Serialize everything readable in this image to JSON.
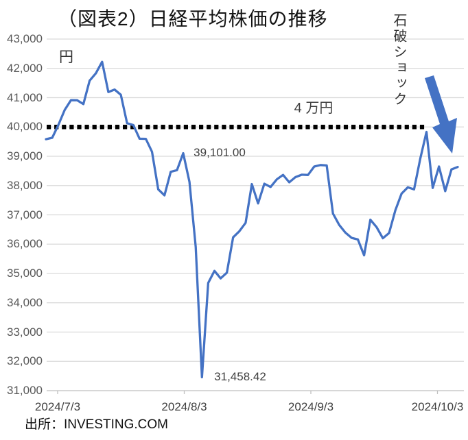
{
  "title": "（図表2）日経平均株価の推移",
  "unit_label": "円",
  "source": "出所：INVESTING.COM",
  "annotations": {
    "peak_label": "39,101.00",
    "crash_low_label": "31,458.42",
    "reference_label": "4 万円",
    "shock_label": "石破ショック"
  },
  "colors": {
    "line": "#4472C4",
    "arrow": "#4472C4",
    "grid": "#D9D9D9",
    "axis": "#BFBFBF",
    "reference_dotted": "#000000",
    "y_tick_text": "#595959",
    "x_tick_text": "#404040"
  },
  "chart_data": {
    "type": "line",
    "title": "（図表2）日経平均株価の推移",
    "xlabel": "",
    "ylabel": "円",
    "ylim": [
      31000,
      43000
    ],
    "ytick_step": 1000,
    "grid": "horizontal",
    "legend": "none",
    "x_tick_labels": [
      "2024/7/3",
      "2024/8/3",
      "2024/9/3",
      "2024/10/3"
    ],
    "reference_line": {
      "value": 40000,
      "label": "4 万円",
      "style": "dotted"
    },
    "annotated_points": [
      {
        "date": "2024/7/31",
        "close": 39101.0,
        "label": "39,101.00"
      },
      {
        "date": "2024/8/5",
        "close": 31458.42,
        "label": "31,458.42"
      }
    ],
    "series": [
      {
        "name": "日経平均株価",
        "points": [
          {
            "date": "2024/6/28",
            "close": 39583
          },
          {
            "date": "2024/7/1",
            "close": 39631
          },
          {
            "date": "2024/7/2",
            "close": 40075
          },
          {
            "date": "2024/7/3",
            "close": 40581
          },
          {
            "date": "2024/7/4",
            "close": 40914
          },
          {
            "date": "2024/7/5",
            "close": 40912
          },
          {
            "date": "2024/7/8",
            "close": 40781
          },
          {
            "date": "2024/7/9",
            "close": 41580
          },
          {
            "date": "2024/7/10",
            "close": 41832
          },
          {
            "date": "2024/7/11",
            "close": 42224
          },
          {
            "date": "2024/7/12",
            "close": 41191
          },
          {
            "date": "2024/7/16",
            "close": 41275
          },
          {
            "date": "2024/7/17",
            "close": 41098
          },
          {
            "date": "2024/7/18",
            "close": 40127
          },
          {
            "date": "2024/7/19",
            "close": 40064
          },
          {
            "date": "2024/7/22",
            "close": 39599
          },
          {
            "date": "2024/7/23",
            "close": 39594
          },
          {
            "date": "2024/7/24",
            "close": 39155
          },
          {
            "date": "2024/7/25",
            "close": 37870
          },
          {
            "date": "2024/7/26",
            "close": 37667
          },
          {
            "date": "2024/7/29",
            "close": 38468
          },
          {
            "date": "2024/7/30",
            "close": 38526
          },
          {
            "date": "2024/7/31",
            "close": 39102
          },
          {
            "date": "2024/8/1",
            "close": 38126
          },
          {
            "date": "2024/8/2",
            "close": 35910
          },
          {
            "date": "2024/8/5",
            "close": 31458
          },
          {
            "date": "2024/8/6",
            "close": 34675
          },
          {
            "date": "2024/8/7",
            "close": 35090
          },
          {
            "date": "2024/8/8",
            "close": 34831
          },
          {
            "date": "2024/8/9",
            "close": 35025
          },
          {
            "date": "2024/8/13",
            "close": 36232
          },
          {
            "date": "2024/8/14",
            "close": 36442
          },
          {
            "date": "2024/8/15",
            "close": 36726
          },
          {
            "date": "2024/8/16",
            "close": 38050
          },
          {
            "date": "2024/8/19",
            "close": 37390
          },
          {
            "date": "2024/8/20",
            "close": 38062
          },
          {
            "date": "2024/8/21",
            "close": 37952
          },
          {
            "date": "2024/8/22",
            "close": 38211
          },
          {
            "date": "2024/8/23",
            "close": 38364
          },
          {
            "date": "2024/8/26",
            "close": 38110
          },
          {
            "date": "2024/8/27",
            "close": 38288
          },
          {
            "date": "2024/8/28",
            "close": 38371
          },
          {
            "date": "2024/8/29",
            "close": 38362
          },
          {
            "date": "2024/8/30",
            "close": 38648
          },
          {
            "date": "2024/9/2",
            "close": 38700
          },
          {
            "date": "2024/9/3",
            "close": 38686
          },
          {
            "date": "2024/9/4",
            "close": 37047
          },
          {
            "date": "2024/9/5",
            "close": 36657
          },
          {
            "date": "2024/9/6",
            "close": 36391
          },
          {
            "date": "2024/9/9",
            "close": 36215
          },
          {
            "date": "2024/9/10",
            "close": 36160
          },
          {
            "date": "2024/9/11",
            "close": 35620
          },
          {
            "date": "2024/9/12",
            "close": 36833
          },
          {
            "date": "2024/9/13",
            "close": 36582
          },
          {
            "date": "2024/9/17",
            "close": 36203
          },
          {
            "date": "2024/9/18",
            "close": 36380
          },
          {
            "date": "2024/9/19",
            "close": 37155
          },
          {
            "date": "2024/9/20",
            "close": 37724
          },
          {
            "date": "2024/9/24",
            "close": 37940
          },
          {
            "date": "2024/9/25",
            "close": 37870
          },
          {
            "date": "2024/9/26",
            "close": 38926
          },
          {
            "date": "2024/9/27",
            "close": 39830
          },
          {
            "date": "2024/9/30",
            "close": 37920
          },
          {
            "date": "2024/10/1",
            "close": 38652
          },
          {
            "date": "2024/10/2",
            "close": 37809
          },
          {
            "date": "2024/10/3",
            "close": 38552
          },
          {
            "date": "2024/10/4",
            "close": 38636
          }
        ]
      }
    ]
  }
}
